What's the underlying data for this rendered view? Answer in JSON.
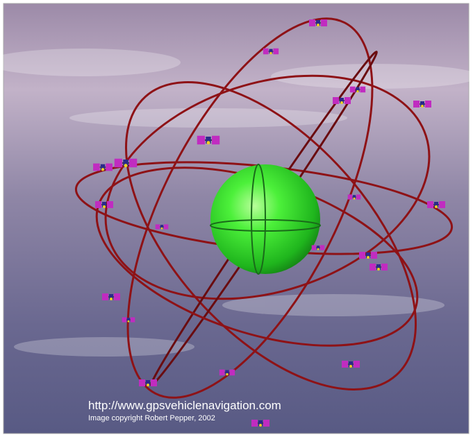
{
  "caption": {
    "url": "http://www.gpsvehiclenavigation.com",
    "copyright": "Image copyright Robert Pepper, 2002"
  }
}
